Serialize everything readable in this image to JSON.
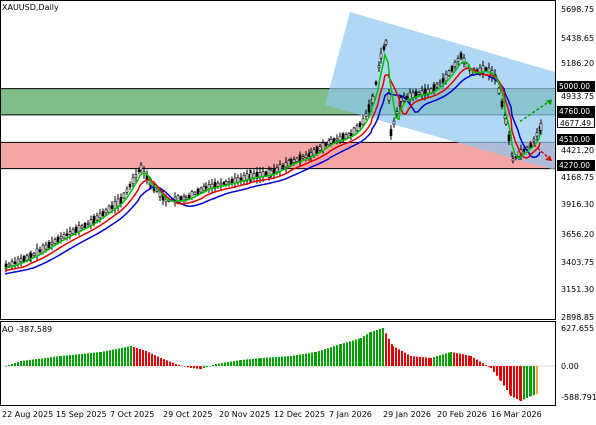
{
  "symbol_title": "XAUUSD,Daily",
  "ao_title": "AO -387.589",
  "colors": {
    "channel": "#8ec8f0",
    "resistance_zone": "#3a9a4a",
    "support_zone": "#f08080",
    "ma_fast": "#00c000",
    "ma_mid": "#e00000",
    "ma_slow": "#0000d0",
    "ao_up": "#00a000",
    "ao_down": "#e00000",
    "ao_last": "#f0a040"
  },
  "price_axis": {
    "ticks": [
      "5698.75",
      "5438.65",
      "5186.20",
      "4933.75",
      "4677.49",
      "4421.20",
      "4168.75",
      "3916.30",
      "3656.20",
      "3403.75",
      "3151.30",
      "2898.85"
    ],
    "highlight_tags": [
      {
        "value": "5000.00",
        "style": "dark"
      },
      {
        "value": "4760.00",
        "style": "dark"
      },
      {
        "value": "4677.49",
        "style": "light"
      },
      {
        "value": "4510.00",
        "style": "dark"
      },
      {
        "value": "4270.00",
        "style": "dark"
      }
    ]
  },
  "ao_axis": {
    "ticks": [
      "627.655",
      "0.00",
      "-588.791"
    ]
  },
  "time_axis": {
    "labels": [
      "22 Aug 2025",
      "15 Sep 2025",
      "7 Oct 2025",
      "29 Oct 2025",
      "20 Nov 2025",
      "12 Dec 2025",
      "7 Jan 2026",
      "29 Jan 2026",
      "20 Feb 2026",
      "16 Mar 2026"
    ]
  }
}
